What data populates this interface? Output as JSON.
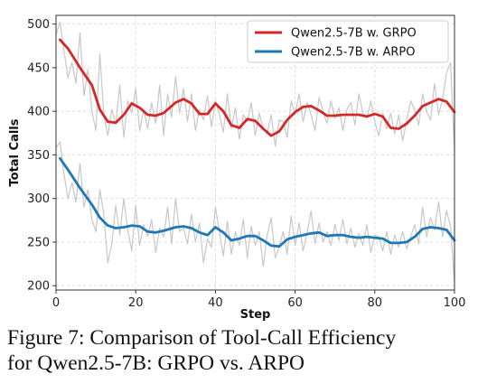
{
  "chart_data": {
    "type": "line",
    "xlabel": "Step",
    "ylabel": "Total Calls",
    "xlim": [
      0,
      100
    ],
    "ylim": [
      195,
      510
    ],
    "xticks": [
      0,
      20,
      40,
      60,
      80,
      100
    ],
    "yticks": [
      200,
      250,
      300,
      350,
      400,
      450,
      500
    ],
    "grid": true,
    "legend_position": "top-right",
    "series": [
      {
        "name": "Qwen2.5-7B w. GRPO",
        "color": "#d62728",
        "x": [
          1,
          3,
          6,
          9,
          11,
          13,
          15,
          17,
          19,
          21,
          23,
          25,
          27,
          30,
          32,
          34,
          36,
          38,
          40,
          42,
          44,
          46,
          48,
          50,
          52,
          54,
          56,
          58,
          60,
          62,
          64,
          66,
          68,
          70,
          72,
          74,
          76,
          78,
          80,
          82,
          84,
          86,
          88,
          90,
          92,
          94,
          96,
          98,
          100
        ],
        "y": [
          482,
          472,
          450,
          430,
          402,
          388,
          387,
          396,
          409,
          404,
          396,
          395,
          398,
          410,
          414,
          409,
          397,
          397,
          409,
          400,
          384,
          381,
          391,
          389,
          380,
          372,
          377,
          390,
          399,
          405,
          406,
          401,
          395,
          395,
          396,
          396,
          396,
          394,
          397,
          394,
          381,
          380,
          386,
          395,
          406,
          410,
          414,
          411,
          399
        ]
      },
      {
        "name": "Qwen2.5-7B w. ARPO",
        "color": "#1f77b4",
        "x": [
          1,
          3,
          6,
          9,
          11,
          13,
          15,
          17,
          19,
          21,
          23,
          25,
          27,
          30,
          32,
          34,
          36,
          38,
          40,
          42,
          44,
          46,
          48,
          50,
          52,
          54,
          56,
          58,
          60,
          62,
          64,
          66,
          68,
          70,
          72,
          74,
          76,
          78,
          80,
          82,
          84,
          86,
          88,
          90,
          92,
          94,
          96,
          98,
          100
        ],
        "y": [
          346,
          333,
          312,
          293,
          278,
          269,
          266,
          267,
          269,
          268,
          262,
          261,
          263,
          267,
          268,
          266,
          261,
          258,
          267,
          261,
          252,
          254,
          257,
          257,
          252,
          246,
          245,
          253,
          256,
          258,
          260,
          261,
          257,
          258,
          258,
          256,
          255,
          256,
          255,
          254,
          249,
          249,
          250,
          256,
          265,
          267,
          266,
          264,
          252
        ]
      }
    ],
    "raw_series": [
      {
        "color": "#c8c8c8",
        "x": [
          0,
          1,
          2,
          3,
          4,
          5,
          6,
          7,
          8,
          9,
          10,
          11,
          12,
          13,
          14,
          15,
          16,
          17,
          18,
          19,
          20,
          21,
          22,
          23,
          24,
          25,
          26,
          27,
          28,
          29,
          30,
          31,
          32,
          33,
          34,
          35,
          36,
          37,
          38,
          39,
          40,
          41,
          42,
          43,
          44,
          45,
          46,
          47,
          48,
          49,
          50,
          51,
          52,
          53,
          54,
          55,
          56,
          57,
          58,
          59,
          60,
          61,
          62,
          63,
          64,
          65,
          66,
          67,
          68,
          69,
          70,
          71,
          72,
          73,
          74,
          75,
          76,
          77,
          78,
          79,
          80,
          81,
          82,
          83,
          84,
          85,
          86,
          87,
          88,
          89,
          90,
          91,
          92,
          93,
          94,
          95,
          96,
          97,
          98,
          99,
          100
        ],
        "y": [
          488,
          502,
          470,
          438,
          456,
          432,
          490,
          418,
          448,
          400,
          378,
          466,
          396,
          372,
          402,
          385,
          430,
          370,
          412,
          398,
          426,
          378,
          402,
          380,
          410,
          386,
          430,
          372,
          420,
          393,
          440,
          398,
          426,
          388,
          420,
          378,
          402,
          390,
          418,
          382,
          412,
          396,
          376,
          420,
          380,
          404,
          368,
          396,
          388,
          410,
          372,
          398,
          380,
          374,
          396,
          360,
          390,
          388,
          370,
          412,
          396,
          420,
          388,
          410,
          396,
          378,
          416,
          400,
          386,
          412,
          392,
          404,
          378,
          402,
          410,
          384,
          420,
          398,
          392,
          412,
          388,
          372,
          398,
          380,
          398,
          374,
          396,
          366,
          390,
          412,
          402,
          384,
          420,
          400,
          390,
          432,
          396,
          414,
          444,
          456,
          352
        ]
      },
      {
        "color": "#c8c8c8",
        "x": [
          0,
          1,
          2,
          3,
          4,
          5,
          6,
          7,
          8,
          9,
          10,
          11,
          12,
          13,
          14,
          15,
          16,
          17,
          18,
          19,
          20,
          21,
          22,
          23,
          24,
          25,
          26,
          27,
          28,
          29,
          30,
          31,
          32,
          33,
          34,
          35,
          36,
          37,
          38,
          39,
          40,
          41,
          42,
          43,
          44,
          45,
          46,
          47,
          48,
          49,
          50,
          51,
          52,
          53,
          54,
          55,
          56,
          57,
          58,
          59,
          60,
          61,
          62,
          63,
          64,
          65,
          66,
          67,
          68,
          69,
          70,
          71,
          72,
          73,
          74,
          75,
          76,
          77,
          78,
          79,
          80,
          81,
          82,
          83,
          84,
          85,
          86,
          87,
          88,
          89,
          90,
          91,
          92,
          93,
          94,
          95,
          96,
          97,
          98,
          99,
          100
        ],
        "y": [
          358,
          365,
          328,
          300,
          318,
          296,
          340,
          290,
          310,
          276,
          262,
          310,
          282,
          226,
          248,
          292,
          258,
          300,
          264,
          240,
          292,
          246,
          270,
          256,
          276,
          238,
          266,
          256,
          290,
          248,
          300,
          262,
          266,
          248,
          282,
          250,
          272,
          226,
          254,
          244,
          290,
          262,
          234,
          274,
          236,
          262,
          246,
          276,
          232,
          268,
          246,
          262,
          222,
          258,
          278,
          232,
          244,
          262,
          236,
          280,
          246,
          272,
          240,
          260,
          286,
          248,
          272,
          250,
          262,
          246,
          270,
          252,
          276,
          248,
          266,
          244,
          260,
          246,
          270,
          238,
          258,
          256,
          240,
          262,
          236,
          258,
          244,
          262,
          242,
          256,
          270,
          248,
          290,
          256,
          278,
          264,
          296,
          256,
          286,
          268,
          202
        ]
      }
    ]
  },
  "caption": {
    "line1": "Figure 7: Comparison of Tool-Call Efficiency",
    "line2": "for Qwen2.5-7B: GRPO vs. ARPO"
  }
}
